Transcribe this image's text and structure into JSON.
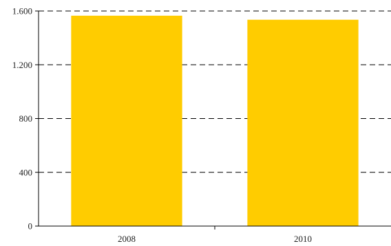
{
  "chart_data": {
    "type": "bar",
    "categories": [
      "2008",
      "2010"
    ],
    "values": [
      1565,
      1535
    ],
    "ylim": [
      0,
      1600
    ],
    "yticks": [
      0,
      400,
      800,
      1200,
      1600
    ],
    "ytick_labels": [
      "0",
      "400",
      "800",
      "1.200",
      "1.600"
    ],
    "grid": true,
    "grid_style": "dashed",
    "title": "",
    "xlabel": "",
    "ylabel": "",
    "colors": {
      "bar": "#FFCC00",
      "grid": "#000000",
      "axis": "#000000",
      "text": "#222222"
    }
  }
}
